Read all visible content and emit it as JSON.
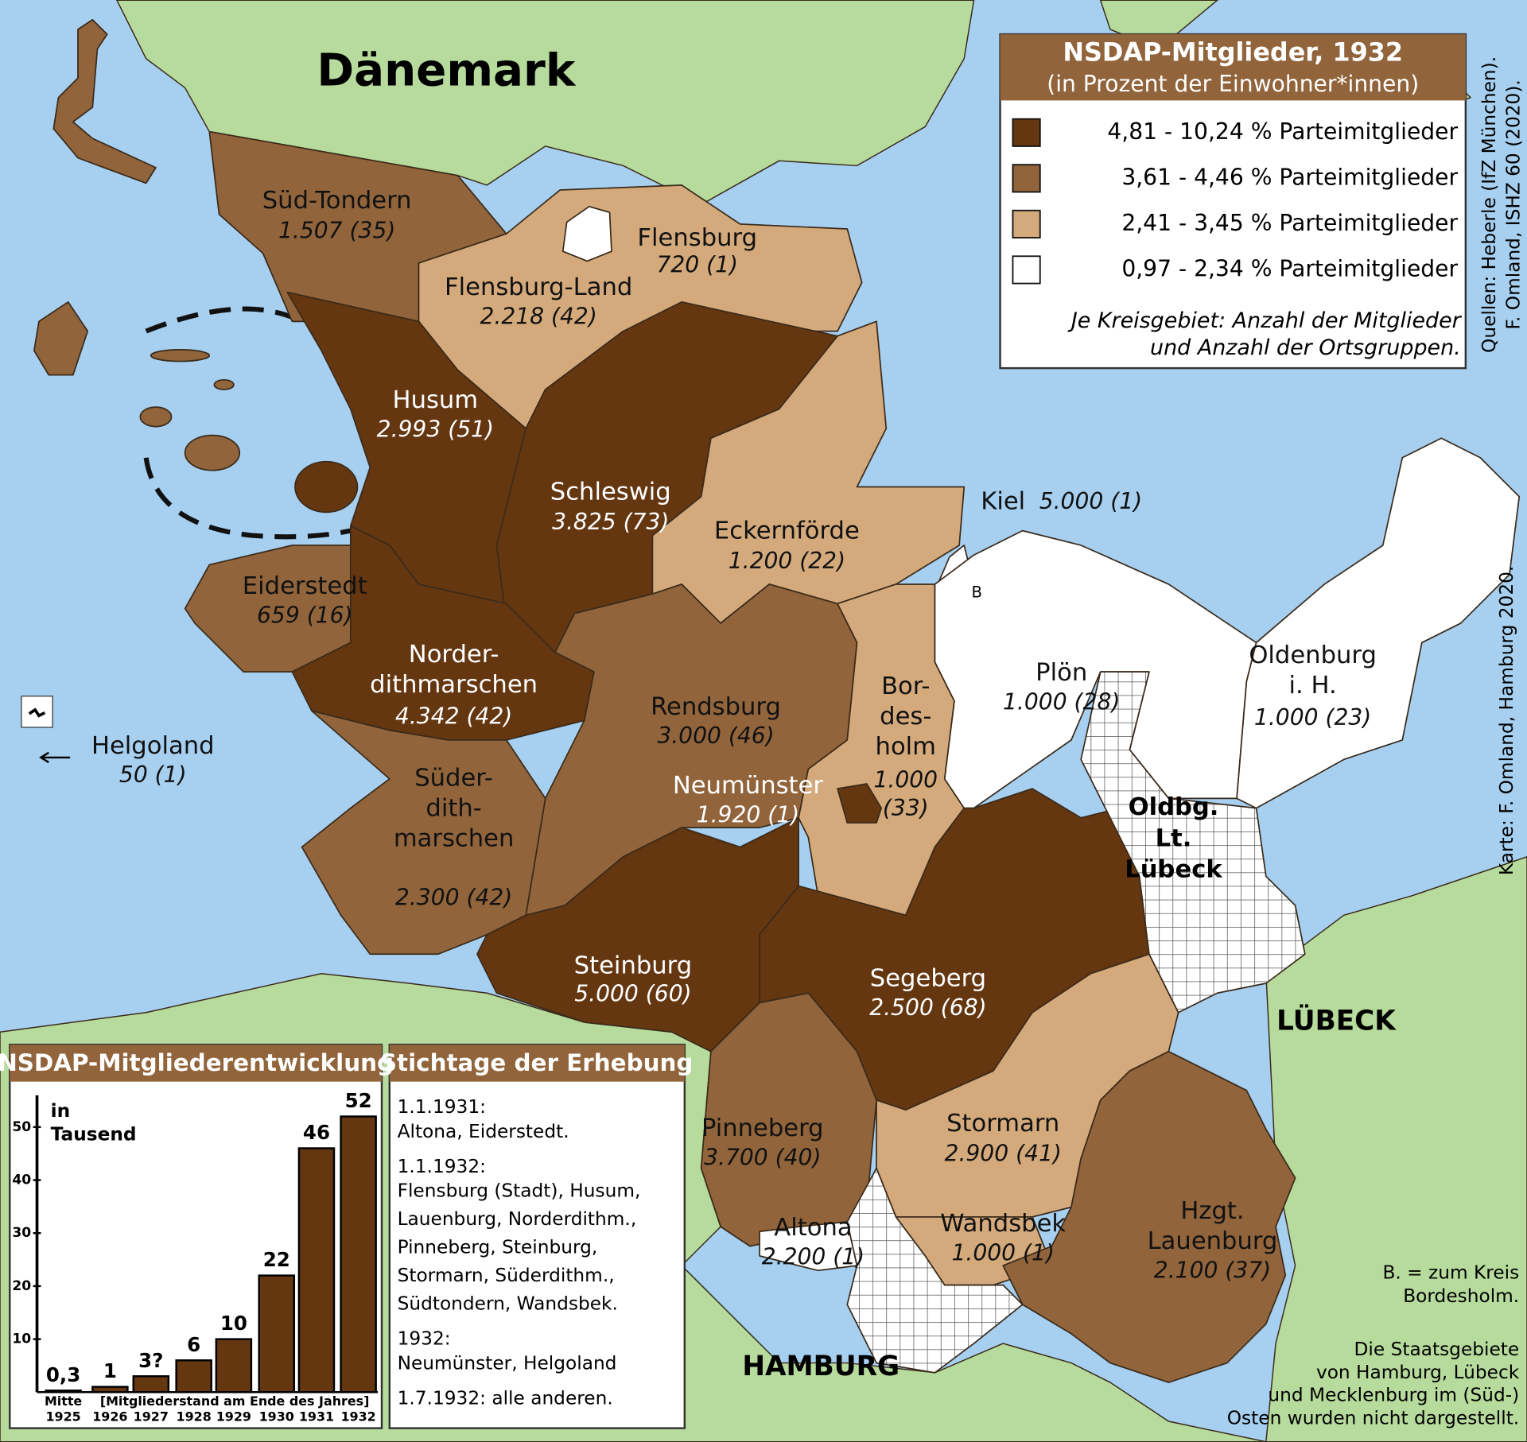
{
  "map": {
    "country_label": "Dänemark",
    "legend": {
      "title": "NSDAP-Mitglieder, 1932",
      "subtitle": "(in Prozent der Einwohner*innen)",
      "classes": [
        {
          "label": "4,81 - 10,24 % Parteimitglieder",
          "color": "#653711"
        },
        {
          "label": "3,61 - 4,46 % Parteimitglieder",
          "color": "#91643b"
        },
        {
          "label": "2,41 - 3,45 % Parteimitglieder",
          "color": "#d4aa7c"
        },
        {
          "label": "0,97 - 2,34 % Parteimitglieder",
          "color": "#ffffff"
        }
      ],
      "note": [
        "Je Kreisgebiet: Anzahl der Mitglieder",
        "und Anzahl der Ortsgruppen."
      ]
    },
    "districts": [
      {
        "name": [
          "Süd-Tondern"
        ],
        "figures": [
          "1.507 (35)"
        ],
        "color": "#91643b"
      },
      {
        "name": [
          "Flensburg-Land"
        ],
        "figures": [
          "2.218 (42)"
        ],
        "color": "#d4aa7c"
      },
      {
        "name": [
          "Flensburg"
        ],
        "figures": [
          "720 (1)"
        ],
        "color": "#ffffff"
      },
      {
        "name": [
          "Husum"
        ],
        "figures": [
          "2.993 (51)"
        ],
        "color": "#653711"
      },
      {
        "name": [
          "Schleswig"
        ],
        "figures": [
          "3.825 (73)"
        ],
        "color": "#653711"
      },
      {
        "name": [
          "Eckernförde"
        ],
        "figures": [
          "1.200 (22)"
        ],
        "color": "#d4aa7c"
      },
      {
        "name": [
          "Kiel"
        ],
        "figures": [
          "5.000 (1)"
        ],
        "color": "#ffffff"
      },
      {
        "name": [
          "Eiderstedt"
        ],
        "figures": [
          "659 (16)"
        ],
        "color": "#91643b"
      },
      {
        "name": [
          "Norder-",
          "dithmarschen"
        ],
        "figures": [
          "4.342 (42)"
        ],
        "color": "#653711"
      },
      {
        "name": [
          "Rendsburg"
        ],
        "figures": [
          "3.000 (46)"
        ],
        "color": "#91643b"
      },
      {
        "name": [
          "Bor-",
          "des-",
          "holm"
        ],
        "figures": [
          "1.000",
          "(33)"
        ],
        "color": "#d4aa7c"
      },
      {
        "name": [
          "Plön"
        ],
        "figures": [
          "1.000 (28)"
        ],
        "color": "#ffffff"
      },
      {
        "name": [
          "Oldenburg",
          "i. H."
        ],
        "figures": [
          "1.000 (23)"
        ],
        "color": "#ffffff"
      },
      {
        "name": [
          "Neumünster"
        ],
        "figures": [
          "1.920 (1)"
        ],
        "color": "#653711"
      },
      {
        "name": [
          "Süder-",
          "dith-",
          "marschen"
        ],
        "figures": [
          "2.300 (42)"
        ],
        "color": "#91643b"
      },
      {
        "name": [
          "Steinburg"
        ],
        "figures": [
          "5.000 (60)"
        ],
        "color": "#653711"
      },
      {
        "name": [
          "Segeberg"
        ],
        "figures": [
          "2.500 (68)"
        ],
        "color": "#653711"
      },
      {
        "name": [
          "Pinneberg"
        ],
        "figures": [
          "3.700 (40)"
        ],
        "color": "#91643b"
      },
      {
        "name": [
          "Stormarn"
        ],
        "figures": [
          "2.900 (41)"
        ],
        "color": "#d4aa7c"
      },
      {
        "name": [
          "Wandsbek"
        ],
        "figures": [
          "1.000 (1)"
        ],
        "color": "#d4aa7c"
      },
      {
        "name": [
          "Altona"
        ],
        "figures": [
          "2.200 (1)"
        ],
        "color": "#ffffff"
      },
      {
        "name": [
          "Hzgt.",
          "Lauenburg"
        ],
        "figures": [
          "2.100 (37)"
        ],
        "color": "#91643b"
      },
      {
        "name": [
          "Helgoland"
        ],
        "figures": [
          "50 (1)"
        ],
        "color": "#ffffff"
      }
    ],
    "other_labels": {
      "oldenburg_luebeck": [
        "Oldbg.",
        "Lt.",
        "Lübeck"
      ],
      "luebeck": "LÜBECK",
      "hamburg": "HAMBURG",
      "b_marker": "B",
      "b_note": [
        "B. = zum Kreis",
        "Bordesholm."
      ],
      "states_note": [
        "Die Staatsgebiete",
        "von Hamburg, Lübeck",
        "und Mecklenburg im (Süd-)",
        "Osten wurden nicht dargestellt."
      ],
      "sources": [
        "Quellen: Heberle (IfZ München).",
        "F. Omland, ISHZ 60 (2020)."
      ],
      "credit": "Karte: F. Omland, Hamburg 2020."
    },
    "survey_dates": {
      "title": "Stichtage der Erhebung",
      "entries": [
        {
          "date": "1.1.1931:",
          "lines": [
            "Altona, Eiderstedt."
          ]
        },
        {
          "date": "1.1.1932:",
          "lines": [
            "Flensburg (Stadt), Husum,",
            "Lauenburg, Norderdithm.,",
            "Pinneberg, Steinburg,",
            "Stormarn, Süderdithm.,",
            "Südtondern, Wandsbek."
          ]
        },
        {
          "date": "1932:",
          "lines": [
            "Neumünster, Helgoland"
          ]
        },
        {
          "date": "1.7.1932: alle anderen.",
          "lines": []
        }
      ]
    }
  },
  "chart_data": {
    "type": "bar",
    "title": "NSDAP-Mitgliederentwicklung",
    "y_label": [
      "in",
      "Tausend"
    ],
    "categories": [
      "1925",
      "1926",
      "1927",
      "1928",
      "1929",
      "1930",
      "1931",
      "1932"
    ],
    "x_prefix": "Mitte",
    "x_note": "[Mitgliederstand am Ende des Jahres]",
    "values": [
      0.3,
      1,
      3,
      6,
      10,
      22,
      46,
      52
    ],
    "value_labels": [
      "0,3",
      "1",
      "3?",
      "6",
      "10",
      "22",
      "46",
      "52"
    ],
    "color": "#653711",
    "ylim": [
      0,
      56
    ],
    "yticks": [
      10,
      20,
      30,
      40,
      50
    ]
  }
}
